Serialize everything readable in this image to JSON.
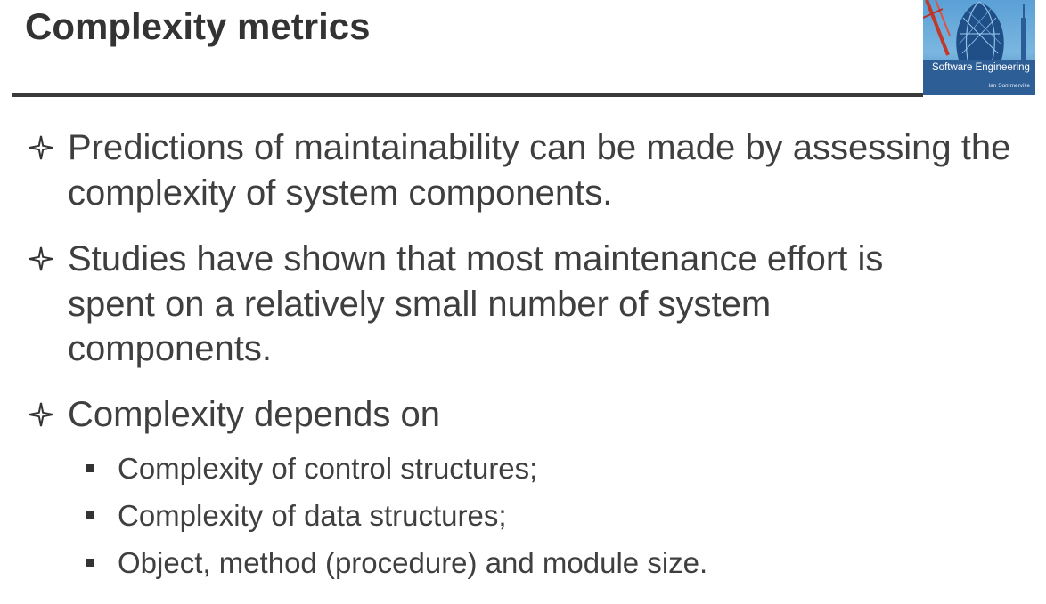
{
  "slide": {
    "title": "Complexity metrics"
  },
  "book": {
    "title": "Software Engineering",
    "author": "Ian Sommerville"
  },
  "bullets": [
    {
      "text": "Predictions of maintainability can be made by assessing the complexity of system components."
    },
    {
      "text": "Studies have shown that most maintenance effort is spent on a relatively small number of system components."
    },
    {
      "text": "Complexity depends on"
    }
  ],
  "sub_bullets": [
    {
      "text": "Complexity of control structures;"
    },
    {
      "text": "Complexity of data structures;"
    },
    {
      "text": "Object, method (procedure) and module size."
    }
  ],
  "colors": {
    "text": "#3f3f3f",
    "title": "#333333",
    "rule": "#3a3a3a",
    "book_strip": "#2d5f96"
  },
  "icons": {
    "bullet_marker": "four-point-star-outline-icon",
    "sub_bullet_marker": "square-bullet-icon"
  }
}
